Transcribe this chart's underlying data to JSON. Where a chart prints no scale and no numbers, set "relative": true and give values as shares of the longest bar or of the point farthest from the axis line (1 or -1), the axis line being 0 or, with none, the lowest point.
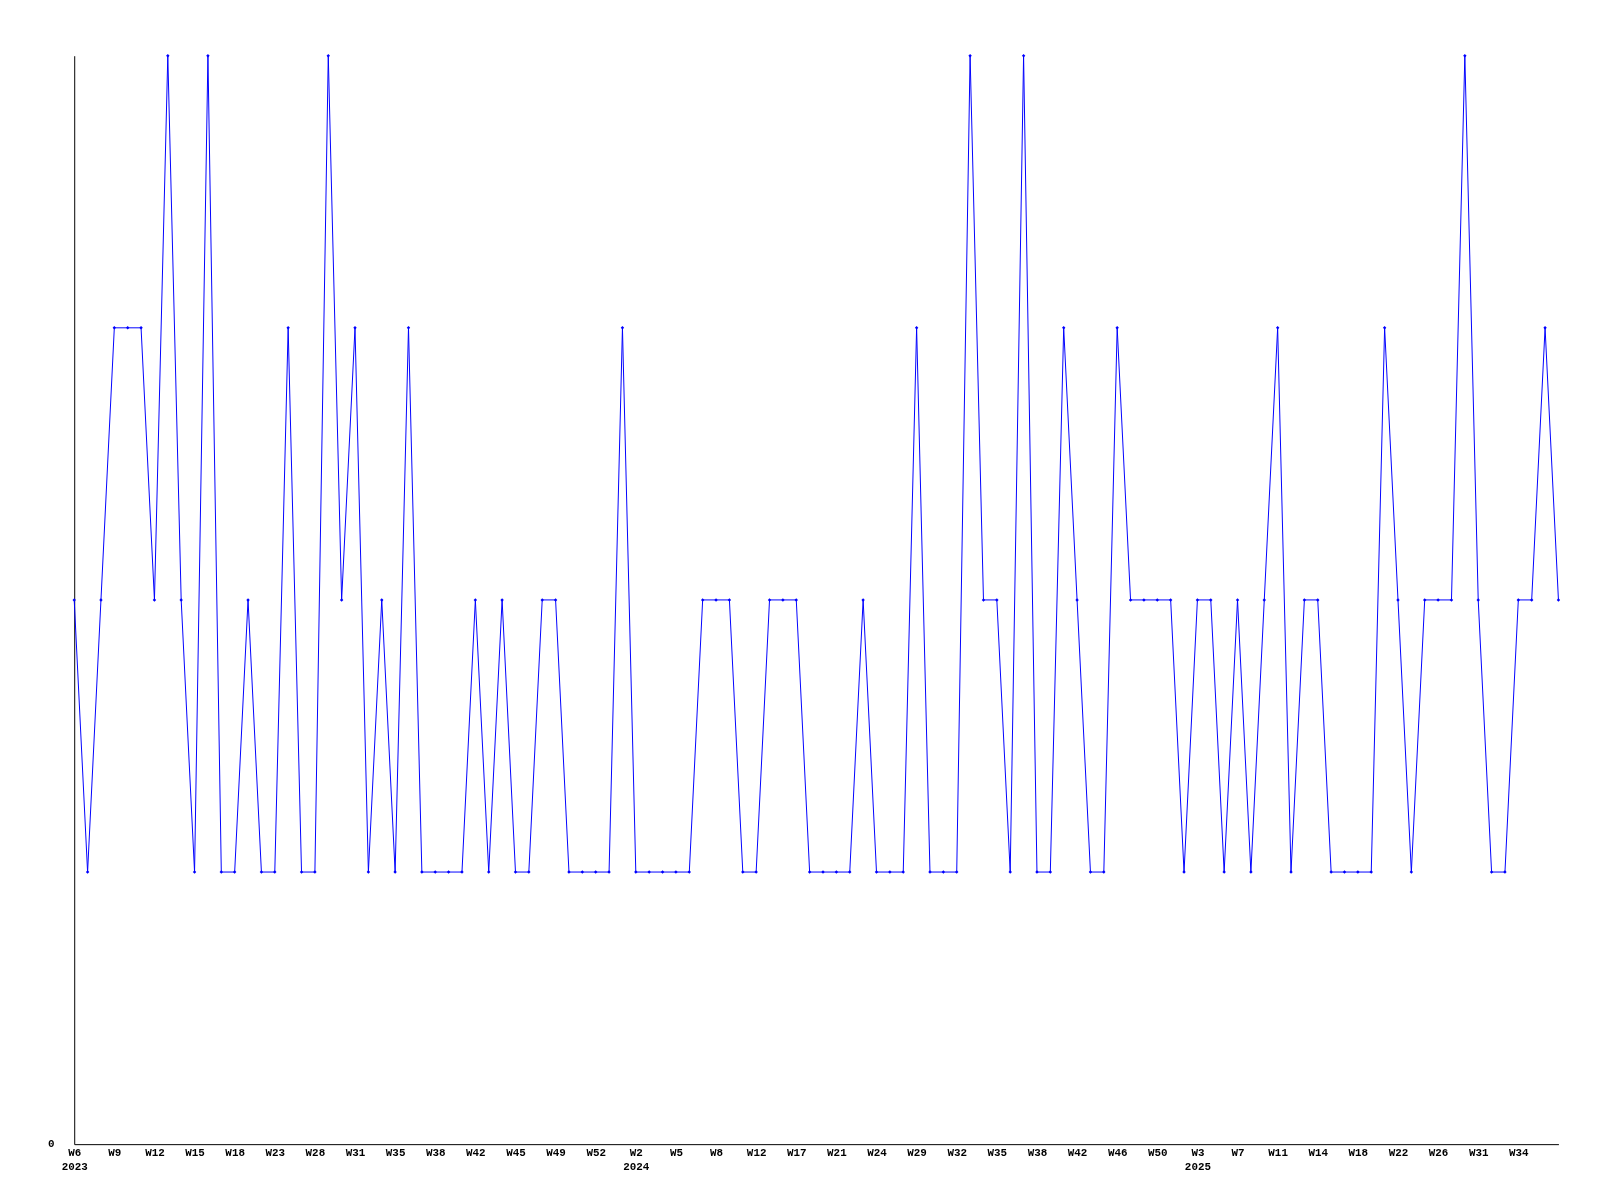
{
  "chart_data": {
    "type": "line",
    "relative": true,
    "marker": "diamond",
    "grid": false,
    "categories": [
      "W6\n2023",
      null,
      null,
      "W9",
      null,
      null,
      "W12",
      null,
      null,
      "W15",
      null,
      null,
      "W18",
      null,
      null,
      "W23",
      null,
      null,
      "W28",
      null,
      null,
      "W31",
      null,
      null,
      "W35",
      null,
      null,
      "W38",
      null,
      null,
      "W42",
      null,
      null,
      "W45",
      null,
      null,
      "W49",
      null,
      null,
      "W52",
      null,
      null,
      "W2\n2024",
      null,
      null,
      "W5",
      null,
      null,
      "W8",
      null,
      null,
      "W12",
      null,
      null,
      "W17",
      null,
      null,
      "W21",
      null,
      null,
      "W24",
      null,
      null,
      "W29",
      null,
      null,
      "W32",
      null,
      null,
      "W35",
      null,
      null,
      "W38",
      null,
      null,
      "W42",
      null,
      null,
      "W46",
      null,
      null,
      "W50",
      null,
      null,
      "W3\n2025",
      null,
      null,
      "W7",
      null,
      null,
      "W11",
      null,
      null,
      "W14",
      null,
      null,
      "W18",
      null,
      null,
      "W22",
      null,
      null,
      "W26",
      null,
      null,
      "W31",
      null,
      null,
      "W34",
      null,
      null,
      null
    ],
    "series": [
      {
        "color": "#0000ff",
        "values": [
          0.5,
          0.25,
          0.5,
          0.75,
          0.75,
          0.75,
          0.5,
          1,
          0.5,
          0.25,
          1,
          0.25,
          0.25,
          0.5,
          0.25,
          0.25,
          0.75,
          0.25,
          0.25,
          1,
          0.5,
          0.75,
          0.25,
          0.5,
          0.25,
          0.75,
          0.25,
          0.25,
          0.25,
          0.25,
          0.5,
          0.25,
          0.5,
          0.25,
          0.25,
          0.5,
          0.5,
          0.25,
          0.25,
          0.25,
          0.25,
          0.75,
          0.25,
          0.25,
          0.25,
          0.25,
          0.25,
          0.5,
          0.5,
          0.5,
          0.25,
          0.25,
          0.5,
          0.5,
          0.5,
          0.25,
          0.25,
          0.25,
          0.25,
          0.5,
          0.25,
          0.25,
          0.25,
          0.75,
          0.25,
          0.25,
          0.25,
          1,
          0.5,
          0.5,
          0.25,
          1,
          0.25,
          0.25,
          0.75,
          0.5,
          0.25,
          0.25,
          0.75,
          0.5,
          0.5,
          0.5,
          0.5,
          0.25,
          0.5,
          0.5,
          0.25,
          0.5,
          0.25,
          0.5,
          0.75,
          0.25,
          0.5,
          0.5,
          0.25,
          0.25,
          0.25,
          0.25,
          0.75,
          0.5,
          0.25,
          0.5,
          0.5,
          0.5,
          1,
          0.5,
          0.25,
          0.25,
          0.5,
          0.5,
          0.75,
          0.5
        ]
      }
    ],
    "annotations": [
      "0"
    ]
  }
}
